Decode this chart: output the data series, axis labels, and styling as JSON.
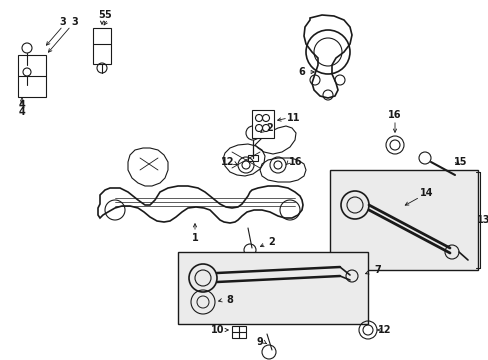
{
  "background_color": "#ffffff",
  "line_color": "#1a1a1a",
  "box_fill": "#ebebeb",
  "fig_width": 4.89,
  "fig_height": 3.6,
  "dpi": 100
}
